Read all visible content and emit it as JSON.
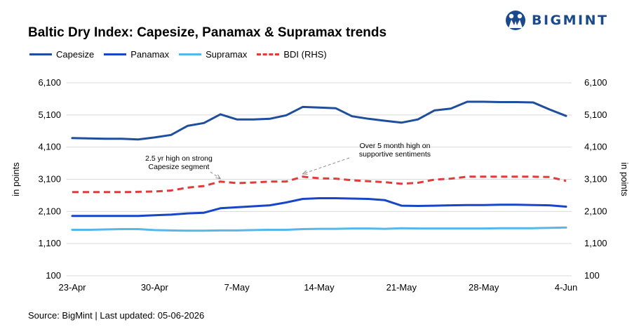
{
  "brand": {
    "name": "BIGMINT",
    "color": "#1a4a8c"
  },
  "chart_data": {
    "type": "line",
    "title": "Baltic Dry Index: Capesize, Panamax & Supramax trends",
    "x": [
      "23-Apr",
      "24-Apr",
      "27-Apr",
      "28-Apr",
      "29-Apr",
      "30-Apr",
      "1-May",
      "4-May",
      "5-May",
      "6-May",
      "7-May",
      "8-May",
      "11-May",
      "12-May",
      "13-May",
      "14-May",
      "15-May",
      "18-May",
      "19-May",
      "20-May",
      "21-May",
      "22-May",
      "25-May",
      "26-May",
      "27-May",
      "28-May",
      "29-May",
      "1-Jun",
      "2-Jun",
      "3-Jun",
      "4-Jun"
    ],
    "xticks": [
      "23-Apr",
      "30-Apr",
      "7-May",
      "14-May",
      "21-May",
      "28-May",
      "4-Jun"
    ],
    "ylabel_left": "in points",
    "ylabel_right": "in points",
    "ylim": [
      100,
      6100
    ],
    "yticks": [
      100,
      1100,
      2100,
      3100,
      4100,
      5100,
      6100
    ],
    "ytick_labels": [
      "100",
      "1,100",
      "2,100",
      "3,100",
      "4,100",
      "5,100",
      "6,100"
    ],
    "grid": "horizontal",
    "legend_position": "top-left",
    "series": [
      {
        "name": "Capesize",
        "color": "#1f4e9c",
        "dash": "solid",
        "width": 3,
        "axis": "left",
        "values": [
          4380,
          4370,
          4360,
          4360,
          4340,
          4400,
          4480,
          4760,
          4850,
          5120,
          4960,
          4960,
          4980,
          5090,
          5350,
          5330,
          5310,
          5060,
          4980,
          4920,
          4860,
          4960,
          5240,
          5300,
          5510,
          5510,
          5500,
          5500,
          5490,
          5270,
          5070
        ]
      },
      {
        "name": "Panamax",
        "color": "#1946c8",
        "dash": "solid",
        "width": 3,
        "axis": "left",
        "values": [
          1960,
          1960,
          1960,
          1960,
          1960,
          1980,
          2000,
          2040,
          2060,
          2200,
          2230,
          2260,
          2290,
          2380,
          2490,
          2510,
          2510,
          2500,
          2490,
          2450,
          2280,
          2270,
          2280,
          2290,
          2300,
          2300,
          2310,
          2310,
          2300,
          2290,
          2250
        ]
      },
      {
        "name": "Supramax",
        "color": "#57b6ea",
        "dash": "solid",
        "width": 3,
        "axis": "left",
        "values": [
          1530,
          1530,
          1540,
          1550,
          1550,
          1520,
          1510,
          1500,
          1500,
          1510,
          1510,
          1520,
          1530,
          1530,
          1550,
          1560,
          1560,
          1570,
          1570,
          1560,
          1580,
          1570,
          1570,
          1570,
          1570,
          1570,
          1580,
          1580,
          1580,
          1590,
          1600
        ]
      },
      {
        "name": "BDI (RHS)",
        "color": "#e23b3b",
        "dash": "dashed",
        "width": 3,
        "axis": "right",
        "values": [
          2700,
          2700,
          2700,
          2700,
          2710,
          2720,
          2750,
          2840,
          2890,
          3030,
          2980,
          3000,
          3030,
          3030,
          3180,
          3130,
          3120,
          3070,
          3040,
          3010,
          2960,
          2990,
          3090,
          3120,
          3180,
          3180,
          3180,
          3180,
          3180,
          3170,
          3050
        ]
      }
    ],
    "annotations": [
      {
        "text_lines": [
          "2.5 yr high on strong",
          "Capesize segment"
        ],
        "target_series": "BDI (RHS)",
        "target_index": 9
      },
      {
        "text_lines": [
          "Over 5 month high on",
          "supportive sentiments"
        ],
        "target_series": "BDI (RHS)",
        "target_index": 14
      }
    ]
  },
  "footer": {
    "source": "Source: BigMint | Last updated: 05-06-2026"
  }
}
